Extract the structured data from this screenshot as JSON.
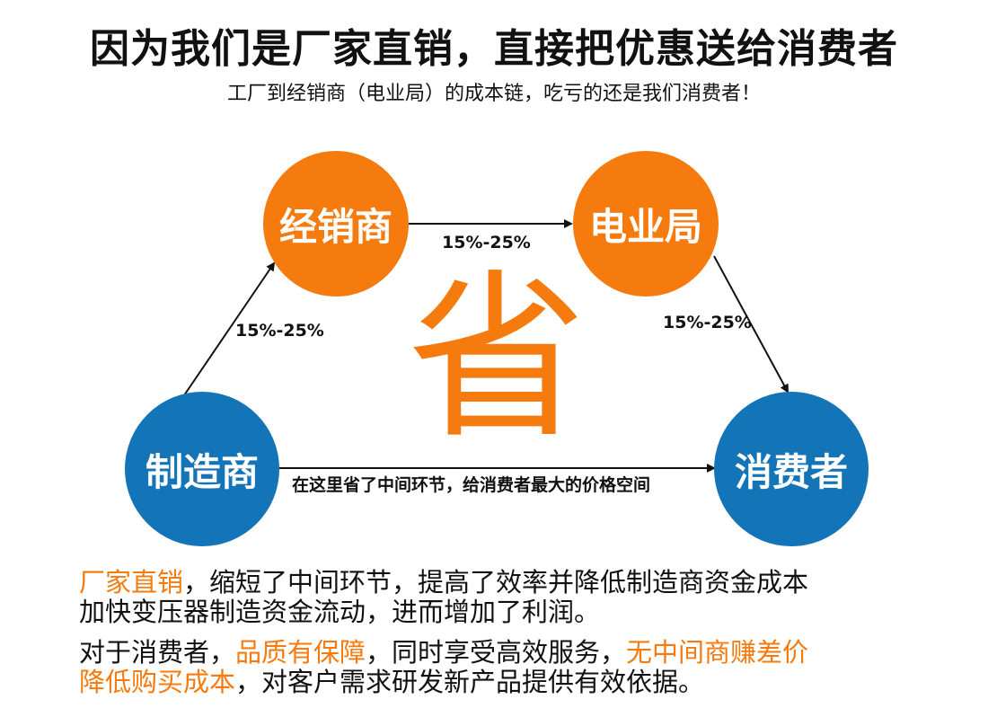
{
  "title": "因为我们是厂家直销，直接把优惠送给消费者",
  "subtitle": "工厂到经销商（电业局）的成本链，吃亏的还是我们消费者！",
  "colors": {
    "orange": "#f57b0e",
    "blue": "#1474b8"
  },
  "nodes": {
    "dealer": "经销商",
    "power_bureau": "电业局",
    "manufacturer": "制造商",
    "consumer": "消费者"
  },
  "edges": {
    "manufacturer_to_dealer": "15%-25%",
    "dealer_to_bureau": "15%-25%",
    "bureau_to_consumer": "15%-25%",
    "direct_note": "在这里省了中间环节，给消费者最大的价格空间"
  },
  "center_char": "省",
  "paragraphs": {
    "p1": {
      "h1": "厂家直销",
      "t1": "，缩短了中间环节，提高了效率并降低制造商资金成本",
      "t2": "加快变压器制造资金流动，进而增加了利润。"
    },
    "p2": {
      "t1": "对于消费者，",
      "h1": "品质有保障",
      "t2": "，同时享受高效服务，",
      "h2": "无中间商赚差价",
      "h3": "降低购买成本",
      "t3": "，对客户需求研发新产品提供有效依据。"
    }
  }
}
